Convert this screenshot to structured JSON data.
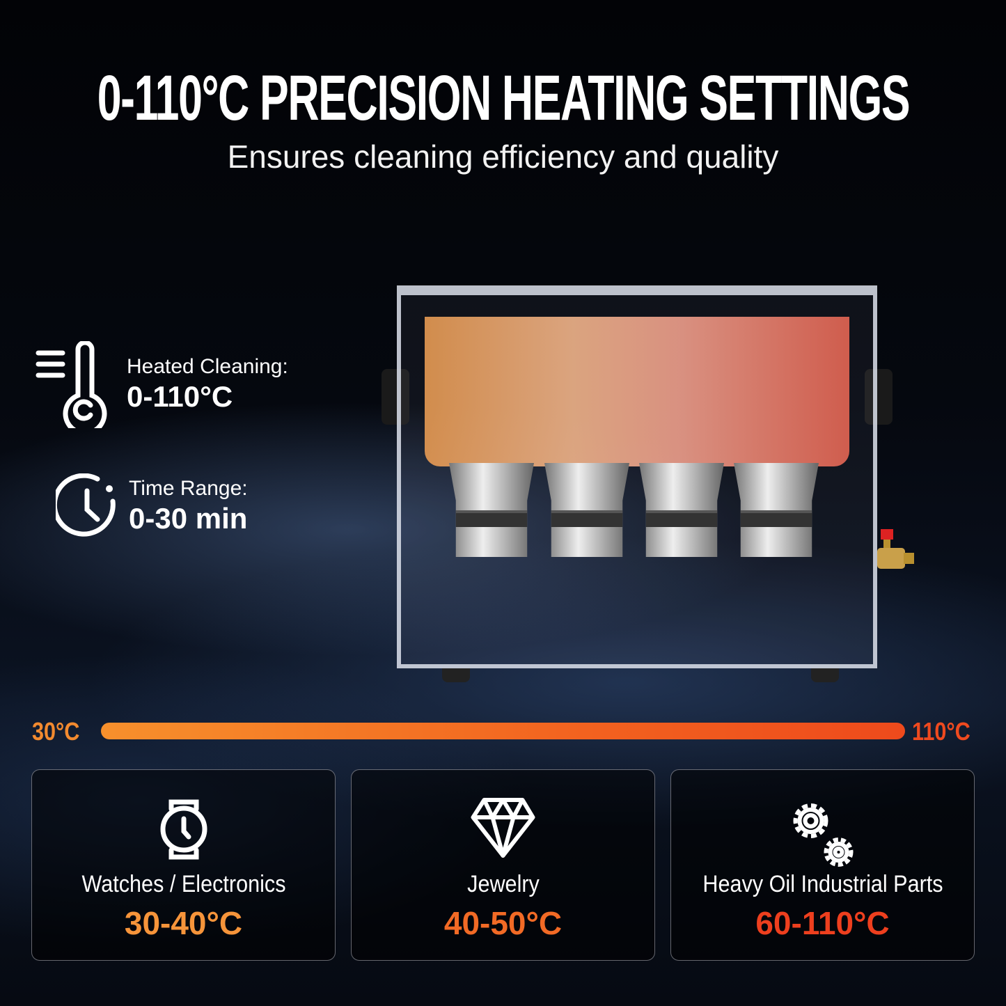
{
  "header": {
    "title": "0-110°C PRECISION HEATING SETTINGS",
    "subtitle": "Ensures cleaning efficiency and quality"
  },
  "features": [
    {
      "icon": "thermometer-icon",
      "label": "Heated Cleaning:",
      "value": "0-110°C"
    },
    {
      "icon": "timer-icon",
      "label": "Time Range:",
      "value": "0-30 min"
    }
  ],
  "scale": {
    "min_label": "30°C",
    "max_label": "110°C",
    "gradient": [
      "#f7902c",
      "#ee4a1c"
    ]
  },
  "cards": [
    {
      "icon": "watch-icon",
      "label": "Watches / Electronics",
      "temp": "30-40°C",
      "color": "#f6943a"
    },
    {
      "icon": "diamond-icon",
      "label": "Jewelry",
      "temp": "40-50°C",
      "color": "#f26a25"
    },
    {
      "icon": "gears-icon",
      "label": "Heavy Oil Industrial Parts",
      "temp": "60-110°C",
      "color": "#ee3f1e"
    }
  ]
}
